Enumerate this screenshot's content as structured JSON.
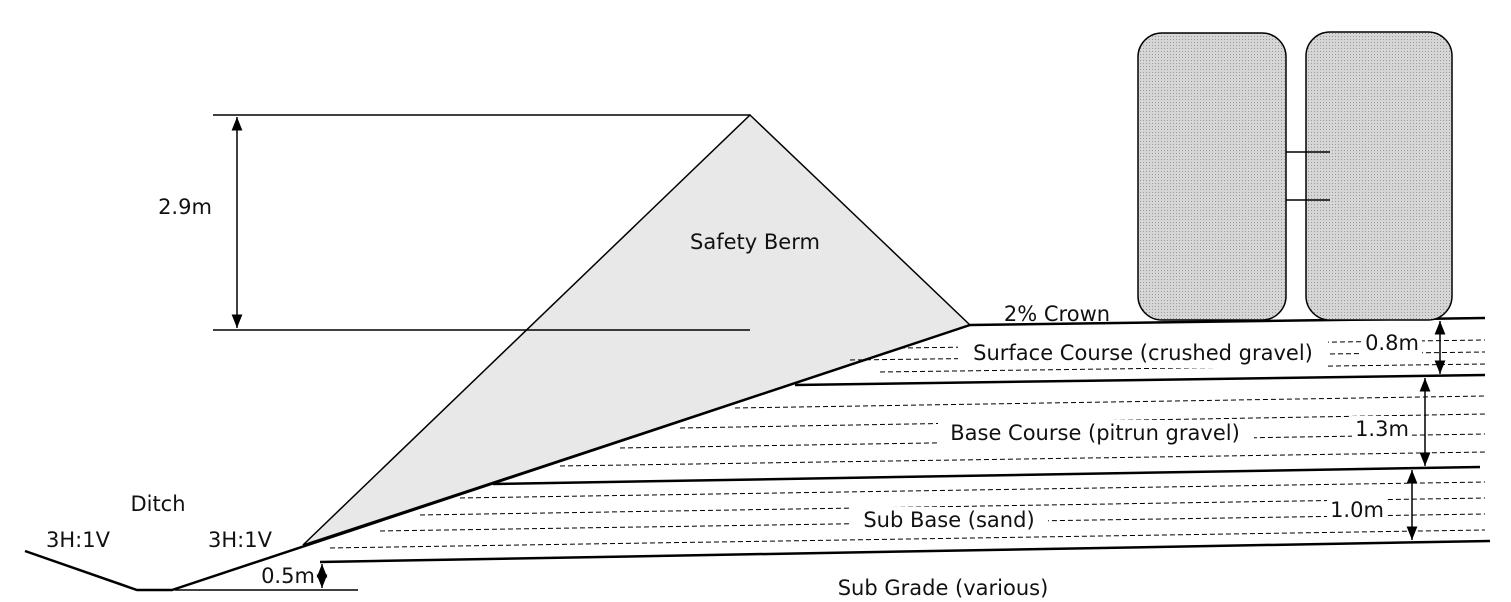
{
  "berm": {
    "label": "Safety Berm",
    "height": "2.9m"
  },
  "crown": "2% Crown",
  "layers": [
    {
      "name": "Surface Course (crushed gravel)",
      "thickness": "0.8m"
    },
    {
      "name": "Base Course (pitrun gravel)",
      "thickness": "1.3m"
    },
    {
      "name": "Sub Base (sand)",
      "thickness": "1.0m"
    }
  ],
  "subgrade": "Sub Grade (various)",
  "ditch": {
    "label": "Ditch",
    "left_slope": "3H:1V",
    "right_slope": "3H:1V",
    "depth": "0.5m"
  }
}
